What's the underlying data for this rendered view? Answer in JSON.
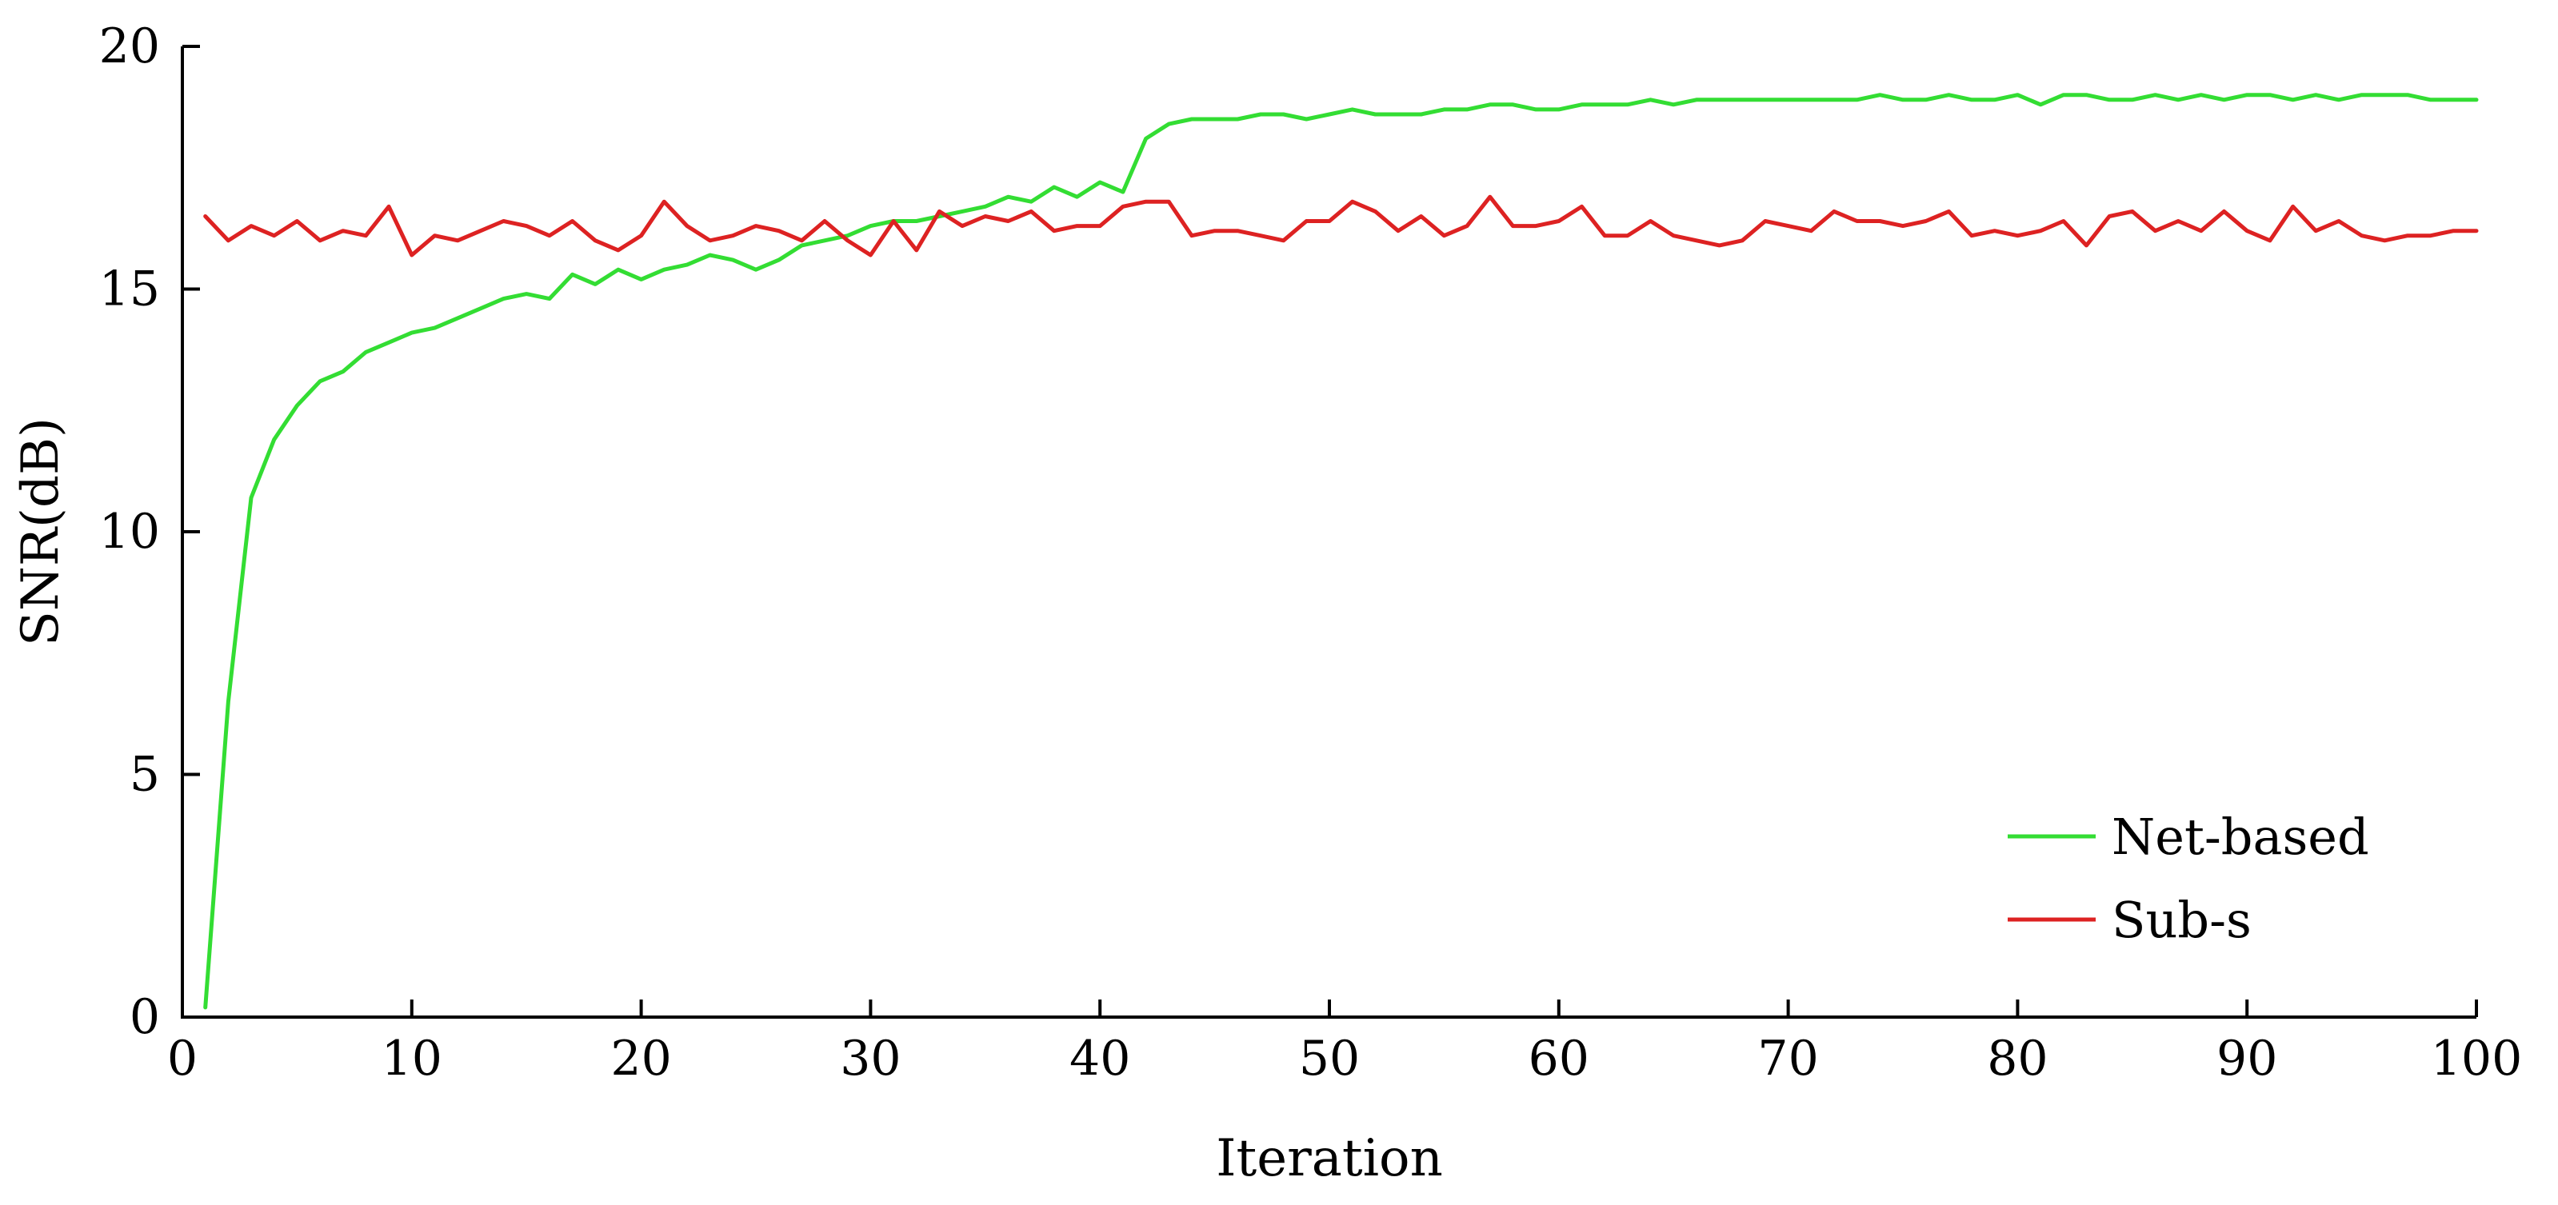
{
  "chart_data": {
    "type": "line",
    "xlabel": "Iteration",
    "ylabel": "SNR(dB)",
    "xlim": [
      0,
      100
    ],
    "ylim": [
      0,
      20
    ],
    "xticks": [
      "0",
      "10",
      "20",
      "30",
      "40",
      "50",
      "60",
      "70",
      "80",
      "90",
      "100"
    ],
    "yticks": [
      "0",
      "5",
      "10",
      "15",
      "20"
    ],
    "grid": false,
    "legend_position": "bottom-right",
    "x": [
      1,
      2,
      3,
      4,
      5,
      6,
      7,
      8,
      9,
      10,
      11,
      12,
      13,
      14,
      15,
      16,
      17,
      18,
      19,
      20,
      21,
      22,
      23,
      24,
      25,
      26,
      27,
      28,
      29,
      30,
      31,
      32,
      33,
      34,
      35,
      36,
      37,
      38,
      39,
      40,
      41,
      42,
      43,
      44,
      45,
      46,
      47,
      48,
      49,
      50,
      51,
      52,
      53,
      54,
      55,
      56,
      57,
      58,
      59,
      60,
      61,
      62,
      63,
      64,
      65,
      66,
      67,
      68,
      69,
      70,
      71,
      72,
      73,
      74,
      75,
      76,
      77,
      78,
      79,
      80,
      81,
      82,
      83,
      84,
      85,
      86,
      87,
      88,
      89,
      90,
      91,
      92,
      93,
      94,
      95,
      96,
      97,
      98,
      99,
      100
    ],
    "series": [
      {
        "name": "Net-based",
        "color": "#33dd33",
        "values": [
          0.2,
          6.5,
          10.7,
          11.9,
          12.6,
          13.1,
          13.3,
          13.7,
          13.9,
          14.1,
          14.2,
          14.4,
          14.6,
          14.8,
          14.9,
          14.8,
          15.3,
          15.1,
          15.4,
          15.2,
          15.4,
          15.5,
          15.7,
          15.6,
          15.4,
          15.6,
          15.9,
          16.0,
          16.1,
          16.3,
          16.4,
          16.4,
          16.5,
          16.6,
          16.7,
          16.9,
          16.8,
          17.1,
          16.9,
          17.2,
          17.0,
          18.1,
          18.4,
          18.5,
          18.5,
          18.5,
          18.6,
          18.6,
          18.5,
          18.6,
          18.7,
          18.6,
          18.6,
          18.6,
          18.7,
          18.7,
          18.8,
          18.8,
          18.7,
          18.7,
          18.8,
          18.8,
          18.8,
          18.9,
          18.8,
          18.9,
          18.9,
          18.9,
          18.9,
          18.9,
          18.9,
          18.9,
          18.9,
          19.0,
          18.9,
          18.9,
          19.0,
          18.9,
          18.9,
          19.0,
          18.8,
          19.0,
          19.0,
          18.9,
          18.9,
          19.0,
          18.9,
          19.0,
          18.9,
          19.0,
          19.0,
          18.9,
          19.0,
          18.9,
          19.0,
          19.0,
          19.0,
          18.9,
          18.9,
          18.9
        ]
      },
      {
        "name": "Sub-s",
        "color": "#dd2222",
        "values": [
          16.5,
          16.0,
          16.3,
          16.1,
          16.4,
          16.0,
          16.2,
          16.1,
          16.7,
          15.7,
          16.1,
          16.0,
          16.2,
          16.4,
          16.3,
          16.1,
          16.4,
          16.0,
          15.8,
          16.1,
          16.8,
          16.3,
          16.0,
          16.1,
          16.3,
          16.2,
          16.0,
          16.4,
          16.0,
          15.7,
          16.4,
          15.8,
          16.6,
          16.3,
          16.5,
          16.4,
          16.6,
          16.2,
          16.3,
          16.3,
          16.7,
          16.8,
          16.8,
          16.1,
          16.2,
          16.2,
          16.1,
          16.0,
          16.4,
          16.4,
          16.8,
          16.6,
          16.2,
          16.5,
          16.1,
          16.3,
          16.9,
          16.3,
          16.3,
          16.4,
          16.7,
          16.1,
          16.1,
          16.4,
          16.1,
          16.0,
          15.9,
          16.0,
          16.4,
          16.3,
          16.2,
          16.6,
          16.4,
          16.4,
          16.3,
          16.4,
          16.6,
          16.1,
          16.2,
          16.1,
          16.2,
          16.4,
          15.9,
          16.5,
          16.6,
          16.2,
          16.4,
          16.2,
          16.6,
          16.2,
          16.0,
          16.7,
          16.2,
          16.4,
          16.1,
          16.0,
          16.1,
          16.1,
          16.2,
          16.2
        ]
      }
    ]
  }
}
